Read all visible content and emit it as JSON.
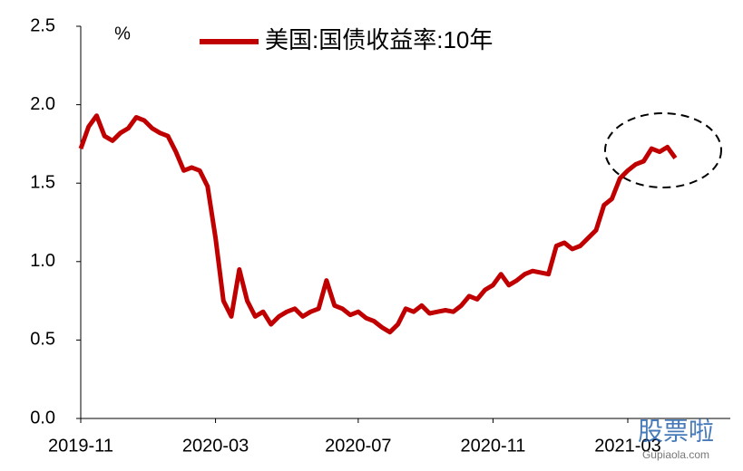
{
  "chart_data": {
    "type": "line",
    "y_unit": "%",
    "categories": [
      "2019-11",
      null,
      null,
      null,
      null,
      null,
      null,
      null,
      null,
      null,
      null,
      null,
      null,
      null,
      null,
      null,
      null,
      "2020-03",
      null,
      null,
      null,
      null,
      null,
      null,
      null,
      null,
      null,
      null,
      null,
      null,
      null,
      null,
      null,
      null,
      null,
      "2020-07",
      null,
      null,
      null,
      null,
      null,
      null,
      null,
      null,
      null,
      null,
      null,
      null,
      null,
      null,
      null,
      null,
      "2020-11",
      null,
      null,
      null,
      null,
      null,
      null,
      null,
      null,
      null,
      null,
      null,
      null,
      null,
      null,
      null,
      null,
      "2021-03",
      null,
      null,
      null,
      null,
      null,
      null
    ],
    "series": [
      {
        "name": "美国:国债收益率:10年",
        "color": "#c00000",
        "values": [
          1.72,
          1.86,
          1.93,
          1.8,
          1.77,
          1.82,
          1.85,
          1.92,
          1.9,
          1.85,
          1.82,
          1.8,
          1.7,
          1.58,
          1.6,
          1.58,
          1.48,
          1.15,
          0.75,
          0.65,
          0.95,
          0.75,
          0.65,
          0.68,
          0.6,
          0.65,
          0.68,
          0.7,
          0.65,
          0.68,
          0.7,
          0.88,
          0.72,
          0.7,
          0.66,
          0.68,
          0.64,
          0.62,
          0.58,
          0.55,
          0.6,
          0.7,
          0.68,
          0.72,
          0.67,
          0.68,
          0.69,
          0.68,
          0.72,
          0.78,
          0.76,
          0.82,
          0.85,
          0.92,
          0.85,
          0.88,
          0.92,
          0.94,
          0.93,
          0.92,
          1.1,
          1.12,
          1.08,
          1.1,
          1.15,
          1.2,
          1.36,
          1.4,
          1.53,
          1.58,
          1.62,
          1.64,
          1.72,
          1.7,
          1.73,
          1.66
        ]
      }
    ],
    "ylim": [
      0,
      2.5
    ],
    "yticks": [
      {
        "value": 0,
        "label": "0.0"
      },
      0.5,
      {
        "value": 1,
        "label": "1.0"
      },
      1.5,
      {
        "value": 2,
        "label": "2.0"
      },
      2.5
    ],
    "grid": false,
    "legend": "top",
    "watermark": [
      "股票啦",
      "Gupiaola.com"
    ]
  }
}
